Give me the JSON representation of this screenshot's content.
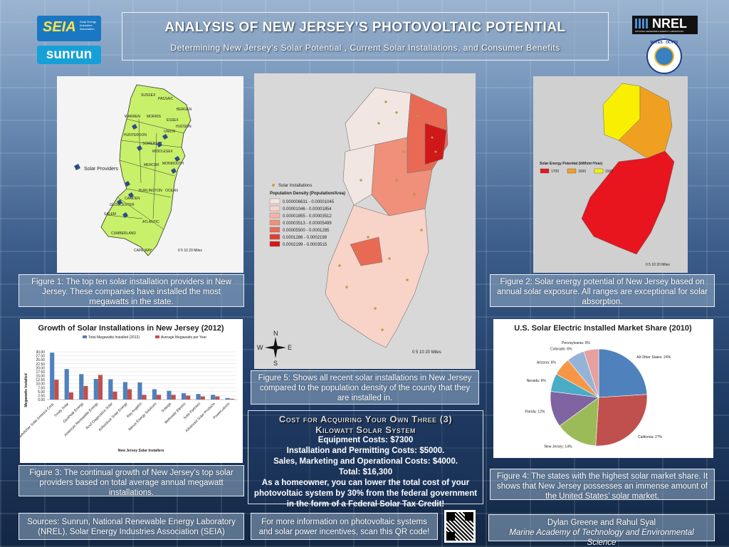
{
  "logos": {
    "seia": "SEIA",
    "seia_sub": "Solar Energy Industries Association",
    "sunrun": "sunrun",
    "nrel": "NREL",
    "nrel_sub": "NATIONAL RENEWABLE ENERGY LABORATORY",
    "mates": "MATES · OCVTS"
  },
  "title": {
    "main": "ANALYSIS OF NEW JERSEY’S PHOTOVOLTAIC POTENTIAL",
    "subtitle": "Determining New Jersey’s Solar Potential , Current Solar Installations, and Consumer Benefits"
  },
  "map1": {
    "counties": [
      "SUSSEX",
      "PASSAIC",
      "BERGEN",
      "WARREN",
      "MORRIS",
      "ESSEX",
      "HUDSON",
      "UNION",
      "HUNTERDON",
      "SOMERSET",
      "MIDDLESEX",
      "MERCER",
      "MONMOUTH",
      "BURLINGTON",
      "OCEAN",
      "CAMDEN",
      "GLOUCESTER",
      "SALEM",
      "ATLANTIC",
      "CUMBERLAND",
      "CAPE MAY"
    ],
    "legend": "Solar Providers",
    "scale": "0  5  10      20 Miles"
  },
  "map2": {
    "legend_title": "Solar Installations",
    "density_title": "Population Density (Population/Area)",
    "ranges": [
      {
        "label": "0.000006631 - 0.00001045",
        "color": "#f2e6e2"
      },
      {
        "label": "0.00001046 - 0.00001854",
        "color": "#f8d3c8"
      },
      {
        "label": "0.00001855 - 0.00003512",
        "color": "#f6b3a2"
      },
      {
        "label": "0.00003513 - 0.00005499",
        "color": "#f0907a"
      },
      {
        "label": "0.00005500 - 0.0001285",
        "color": "#e86a55"
      },
      {
        "label": "0.0001286 - 0.0002198",
        "color": "#de3f32"
      },
      {
        "label": "0.0002199 - 0.0003515",
        "color": "#d01818"
      }
    ],
    "scale": "0   5   10        20 Miles",
    "compass": {
      "n": "N",
      "s": "S",
      "e": "E",
      "w": "W"
    }
  },
  "map3": {
    "legend_title": "Solar Energy Potential (kWh/m²/Year)",
    "levels": [
      {
        "label": "1700",
        "color": "#e8141e"
      },
      {
        "label": "1600",
        "color": "#f0a020"
      },
      {
        "label": "1500",
        "color": "#f8f000"
      }
    ],
    "scale": "0  5  10      20 Miles"
  },
  "captions": {
    "fig1": "Figure 1: The top ten solar installation providers in New Jersey. These companies have installed the most megawatts in the state.",
    "fig2": "Figure 2: Solar energy potential of New Jersey based on annual solar exposure. All ranges are exceptional for solar absorption.",
    "fig3": "Figure 3: The continual growth of New Jersey’s top solar providers based on total average annual megawatt installations.",
    "fig4": "Figure 4: The states with the highest solar market share. It shows that New Jersey  possesses an immense amount of the United States’ solar market.",
    "fig5": "Figure 5: Shows all recent solar installations in New Jersey compared to the population density of the county that they are installed in."
  },
  "cost": {
    "heading_1": "Cost for Acquiring Your Own Three (3)",
    "heading_2": "Kilowatt Solar System",
    "lines": [
      "Equipment Costs: $7300",
      "Installation and Permitting Costs: $5000.",
      "Sales, Marketing and Operational Costs: $4000.",
      "Total: $16,300",
      "As a homeowner, you can lower the total cost of your photovoltaic system by 30% from the federal government in the form of a Federal Solar Tax Credit!"
    ]
  },
  "footer": {
    "sources": "Sources: Sunrun, National Renewable Energy Laboratory (NREL),  Solar Energy Industries Association (SEIA)",
    "qr_text": "For more information on photovoltaic systems and solar power incentives, scan this QR code!",
    "authors": "Dylan Greene and Rahul Syal",
    "school": "Marine Academy of Technology and Environmental Science"
  },
  "chart_data": [
    {
      "type": "bar",
      "title": "Growth of Solar Installations in New Jersey (2012)",
      "xlabel": "New Jersey Solar Installers",
      "ylabel": "Megawatts Installed",
      "ylim": [
        0,
        30
      ],
      "yticks": [
        "0.00",
        "2.50",
        "5.00",
        "7.50",
        "10.00",
        "12.50",
        "15.00",
        "17.50",
        "20.00",
        "22.50",
        "25.00",
        "27.50",
        "30.00"
      ],
      "categories": [
        "Gehrlicher Solar America Corp.",
        "Trinity Solar",
        "GeoPeak Energy",
        "American Renewable Energy",
        "Roof Diagnostics Solar",
        "Arthurdock Solar Energy",
        "Ray Angelini",
        "Nexus Energy Solutions",
        "Solarge",
        "Berkowitz Electric",
        "Solis Partners",
        "Advanced Solar Products",
        "PowerLutions"
      ],
      "series": [
        {
          "name": "Total Megawatts Installed (2012)",
          "color": "#4f81bd",
          "values": [
            29.5,
            19.2,
            16.0,
            13.0,
            12.8,
            11.0,
            10.8,
            6.5,
            5.5,
            4.0,
            3.5,
            3.0,
            1.0
          ]
        },
        {
          "name": "Average Megawatts per Year",
          "color": "#c0504d",
          "values": [
            12.5,
            4.5,
            8.5,
            15.5,
            5.0,
            6.5,
            3.0,
            3.0,
            3.0,
            2.5,
            2.0,
            2.0,
            0.5
          ]
        }
      ],
      "legend": "top"
    },
    {
      "type": "pie",
      "title": "U.S. Solar Electric Installed Market Share (2010)",
      "slices": [
        {
          "label": "All Other States: 24%",
          "value": 24,
          "color": "#4f81bd"
        },
        {
          "label": "California: 27%",
          "value": 27,
          "color": "#c0504d"
        },
        {
          "label": "New Jersey: 14%",
          "value": 14,
          "color": "#9bbb59"
        },
        {
          "label": "Florida: 12%",
          "value": 12,
          "color": "#8064a2"
        },
        {
          "label": "Nevada: 6%",
          "value": 6,
          "color": "#4bacc6"
        },
        {
          "label": "Arizona: 6%",
          "value": 6,
          "color": "#f79646"
        },
        {
          "label": "Colorado: 6%",
          "value": 6,
          "color": "#95b3d7"
        },
        {
          "label": "Pennsylvania: 5%",
          "value": 5,
          "color": "#e6a0a0"
        }
      ]
    }
  ]
}
